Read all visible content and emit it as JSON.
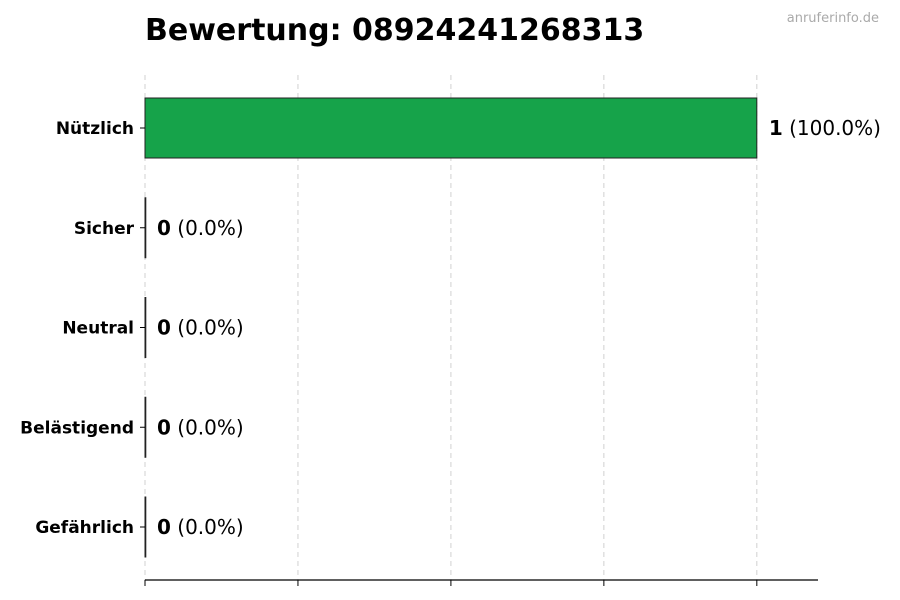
{
  "chart_data": {
    "type": "bar",
    "orientation": "horizontal",
    "title": "Bewertung: 08924241268313",
    "watermark": "anruferinfo.de",
    "categories": [
      "Nützlich",
      "Sicher",
      "Neutral",
      "Belästigend",
      "Gefährlich"
    ],
    "values": [
      1,
      0,
      0,
      0,
      0
    ],
    "labels": [
      {
        "count": "1",
        "pct": "(100.0%)"
      },
      {
        "count": "0",
        "pct": "(0.0%)"
      },
      {
        "count": "0",
        "pct": "(0.0%)"
      },
      {
        "count": "0",
        "pct": "(0.0%)"
      },
      {
        "count": "0",
        "pct": "(0.0%)"
      }
    ],
    "xlim": [
      0,
      1.1
    ],
    "xticks": [
      0,
      0.25,
      0.5,
      0.75,
      1.0
    ],
    "xtick_labels_shown": false,
    "grid": "x-dashed",
    "bar_color": "#16a34a",
    "xlabel": "",
    "ylabel": ""
  }
}
